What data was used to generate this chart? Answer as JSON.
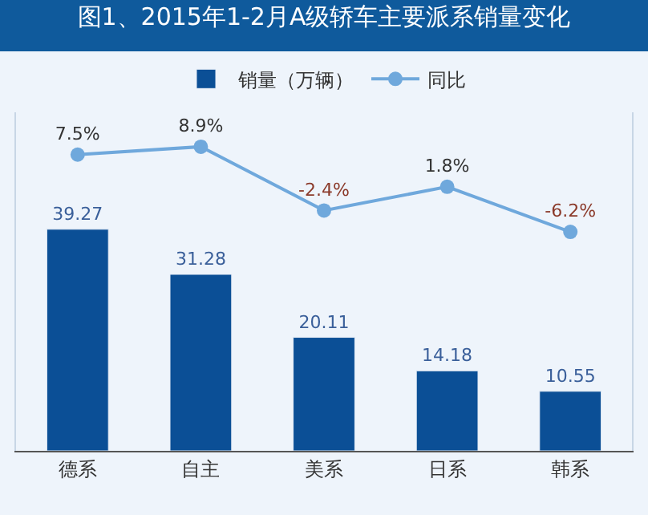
{
  "chart_data": {
    "type": "bar",
    "title": "图1、2015年1-2月A级轿车主要派系销量变化",
    "categories": [
      "德系",
      "自主",
      "美系",
      "日系",
      "韩系"
    ],
    "series": [
      {
        "name": "销量（万辆）",
        "color": "#0b4f96",
        "values": [
          39.27,
          31.28,
          20.11,
          14.18,
          10.55
        ]
      },
      {
        "name": "同比",
        "type": "line",
        "axis": "y2",
        "color": "#6fa8dc",
        "marker": "circle",
        "values": [
          7.5,
          8.9,
          -2.4,
          1.8,
          -6.2
        ],
        "value_labels": [
          "7.5%",
          "8.9%",
          "-2.4%",
          "1.8%",
          "-6.2%"
        ]
      }
    ],
    "ylim": [
      0,
      60
    ],
    "y2lim": [
      -45,
      15
    ],
    "data_labels": true,
    "tick_labels": "x",
    "legend": "top",
    "grid": false
  }
}
